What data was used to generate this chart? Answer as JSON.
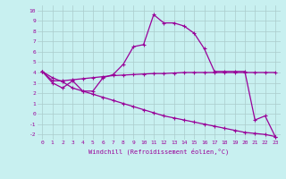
{
  "xlabel": "Windchill (Refroidissement éolien,°C)",
  "bg_color": "#c8f0f0",
  "line_color": "#990099",
  "grid_color": "#aacccc",
  "xlim": [
    -0.5,
    23.5
  ],
  "ylim": [
    -2.5,
    10.5
  ],
  "xticks": [
    0,
    1,
    2,
    3,
    4,
    5,
    6,
    7,
    8,
    9,
    10,
    11,
    12,
    13,
    14,
    15,
    16,
    17,
    18,
    19,
    20,
    21,
    22,
    23
  ],
  "yticks": [
    -2,
    -1,
    0,
    1,
    2,
    3,
    4,
    5,
    6,
    7,
    8,
    9,
    10
  ],
  "line1_x": [
    0,
    1,
    2,
    3,
    4,
    5,
    6,
    7,
    8,
    9,
    10,
    11,
    12,
    13,
    14,
    15,
    16,
    17,
    18,
    19,
    20,
    21,
    22,
    23
  ],
  "line1_y": [
    4.1,
    3.0,
    2.5,
    3.2,
    2.2,
    2.2,
    3.5,
    3.8,
    4.8,
    6.5,
    6.7,
    9.6,
    8.8,
    8.8,
    8.5,
    7.8,
    6.3,
    4.1,
    4.1,
    4.1,
    4.1,
    -0.6,
    -0.2,
    -2.2
  ],
  "line2_x": [
    0,
    1,
    2,
    3,
    4,
    5,
    6,
    7,
    8,
    9,
    10,
    11,
    12,
    13,
    14,
    15,
    16,
    17,
    18,
    19,
    20,
    21,
    22,
    23
  ],
  "line2_y": [
    4.1,
    3.2,
    3.2,
    3.3,
    3.4,
    3.5,
    3.6,
    3.7,
    3.75,
    3.8,
    3.85,
    3.9,
    3.9,
    3.95,
    4.0,
    4.0,
    4.0,
    4.0,
    4.0,
    4.0,
    4.0,
    4.0,
    4.0,
    4.0
  ],
  "line3_x": [
    0,
    1,
    2,
    3,
    4,
    5,
    6,
    7,
    8,
    9,
    10,
    11,
    12,
    13,
    14,
    15,
    16,
    17,
    18,
    19,
    20,
    21,
    22,
    23
  ],
  "line3_y": [
    4.1,
    3.5,
    3.1,
    2.5,
    2.2,
    1.9,
    1.6,
    1.3,
    1.0,
    0.7,
    0.4,
    0.1,
    -0.2,
    -0.4,
    -0.6,
    -0.8,
    -1.0,
    -1.2,
    -1.4,
    -1.6,
    -1.8,
    -1.9,
    -2.0,
    -2.2
  ],
  "marker": "+",
  "markersize": 3,
  "linewidth": 0.9
}
